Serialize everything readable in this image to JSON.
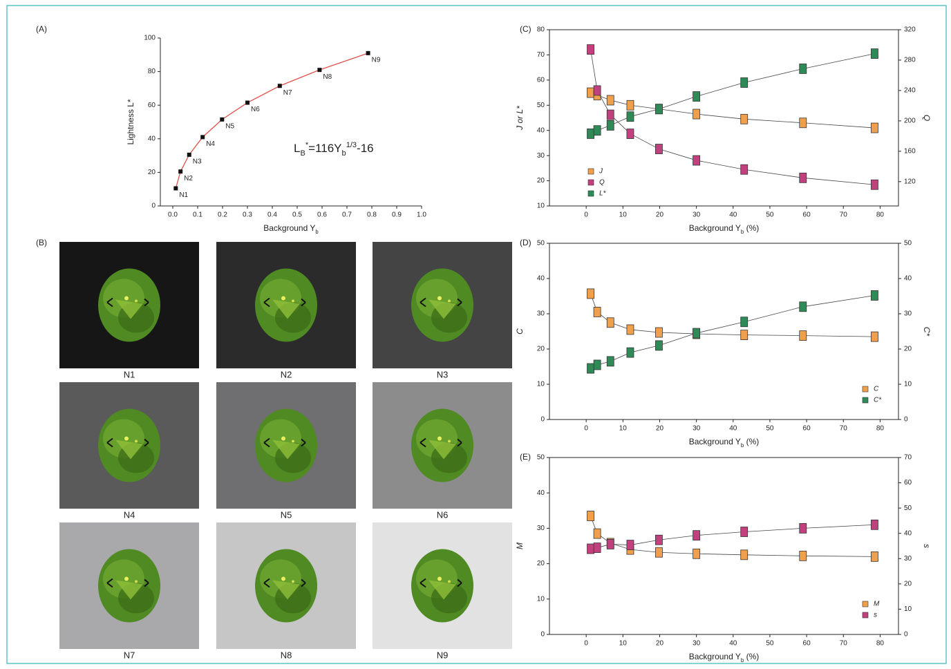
{
  "chart_data": [
    {
      "type": "line",
      "panel_label": "(A)",
      "xlabel": [
        "Background Y",
        "b"
      ],
      "ylabel": "Lightness L*",
      "xlim": [
        -0.05,
        1.0
      ],
      "xticks": [
        {
          "value": 0,
          "label": "0.0"
        },
        {
          "value": 0.1,
          "label": "0.1"
        },
        {
          "value": 0.2,
          "label": "0.2"
        },
        {
          "value": 0.3,
          "label": "0.3"
        },
        {
          "value": 0.4,
          "label": "0.4"
        },
        {
          "value": 0.5,
          "label": "0.5"
        },
        {
          "value": 0.6,
          "label": "0.6"
        },
        {
          "value": 0.7,
          "label": "0.7"
        },
        {
          "value": 0.8,
          "label": "0.8"
        },
        {
          "value": 0.9,
          "label": "0.9"
        },
        {
          "value": 1,
          "label": "1.0"
        }
      ],
      "ylim": [
        0,
        100
      ],
      "yticks": [
        0,
        20,
        40,
        60,
        80,
        100
      ],
      "x": [
        0.012,
        0.031,
        0.066,
        0.12,
        0.198,
        0.3,
        0.43,
        0.59,
        0.785
      ],
      "series": [
        {
          "color": "#e0504a",
          "marker_color": "#111111",
          "values": [
            10.5,
            20.5,
            30.5,
            41,
            51.5,
            61.5,
            71.5,
            81,
            91
          ]
        }
      ],
      "point_labels": [
        "N1",
        "N2",
        "N3",
        "N4",
        "N5",
        "N6",
        "N7",
        "N8",
        "N9"
      ],
      "annotation": [
        "L",
        "B",
        "*",
        "=116Y",
        "b",
        "1/3",
        "-16"
      ]
    },
    {
      "type": "line",
      "panel_label": "(C)",
      "xlabel": [
        "Background Y",
        "b",
        " (%)"
      ],
      "ylabel": "J or L*",
      "y2label": "Q",
      "xlim": [
        -10,
        85
      ],
      "xticks": [
        0,
        10,
        20,
        30,
        40,
        50,
        60,
        70,
        80
      ],
      "ylim": [
        10,
        80
      ],
      "yticks": [
        10,
        20,
        30,
        40,
        50,
        60,
        70,
        80
      ],
      "y2lim": [
        88,
        320
      ],
      "y2ticks": [
        120,
        160,
        200,
        240,
        280,
        320
      ],
      "x": [
        1.2,
        3,
        6.6,
        12,
        19.8,
        30,
        43,
        59,
        78.5
      ],
      "series": [
        {
          "name": "J",
          "color": "#f0a04a",
          "values": [
            55,
            54,
            52,
            50,
            48.5,
            46.5,
            44.5,
            43,
            41
          ]
        },
        {
          "name": "Q",
          "color": "#c2407e",
          "axis": "y2",
          "values": [
            294,
            240,
            208,
            183,
            163,
            148,
            136,
            125,
            116
          ]
        },
        {
          "name": "L*",
          "color": "#2e8b57",
          "values": [
            38.7,
            40,
            42,
            45.5,
            48.5,
            53.5,
            59,
            64.5,
            70.5
          ]
        }
      ],
      "legend": "upper left"
    },
    {
      "type": "line",
      "panel_label": "(D)",
      "xlabel": [
        "Background Y",
        "b",
        " (%)"
      ],
      "ylabel": "C",
      "y2label": "C*",
      "xlim": [
        -10,
        85
      ],
      "xticks": [
        0,
        10,
        20,
        30,
        40,
        50,
        60,
        70,
        80
      ],
      "ylim": [
        0,
        50
      ],
      "yticks": [
        0,
        10,
        20,
        30,
        40,
        50
      ],
      "y2lim": [
        0,
        50
      ],
      "y2ticks": [
        0,
        10,
        20,
        30,
        40,
        50
      ],
      "x": [
        1.2,
        3,
        6.6,
        12,
        19.8,
        30,
        43,
        59,
        78.5
      ],
      "series": [
        {
          "name": "C",
          "color": "#f0a04a",
          "values": [
            35.7,
            30.5,
            27.5,
            25.5,
            24.7,
            24.3,
            24,
            23.8,
            23.5
          ]
        },
        {
          "name": "C*",
          "color": "#2e8b57",
          "values": [
            14.5,
            15.5,
            16.5,
            19,
            21,
            24.5,
            27.7,
            32,
            35.2
          ]
        }
      ],
      "legend": "lower right"
    },
    {
      "type": "line",
      "panel_label": "(E)",
      "xlabel": [
        "Background Y",
        "b",
        " (%)"
      ],
      "ylabel": "M",
      "y2label": "s",
      "xlim": [
        -10,
        85
      ],
      "xticks": [
        0,
        10,
        20,
        30,
        40,
        50,
        60,
        70,
        80
      ],
      "ylim": [
        0,
        50
      ],
      "yticks": [
        0,
        10,
        20,
        30,
        40,
        50
      ],
      "y2lim": [
        0,
        70
      ],
      "y2ticks": [
        0,
        10,
        20,
        30,
        40,
        50,
        60,
        70
      ],
      "x": [
        1.2,
        3,
        6.6,
        12,
        19.8,
        30,
        43,
        59,
        78.5
      ],
      "series": [
        {
          "name": "M",
          "color": "#f0a04a",
          "values": [
            33.5,
            28.5,
            25.8,
            24,
            23.2,
            22.8,
            22.5,
            22.2,
            22
          ]
        },
        {
          "name": "s",
          "color": "#c2407e",
          "axis": "y2",
          "values": [
            33.9,
            34.3,
            35.7,
            35.4,
            37.4,
            39.2,
            40.6,
            42,
            43.4
          ]
        }
      ],
      "legend": "lower right"
    }
  ],
  "panel_b": {
    "label": "(B)",
    "tiles": [
      {
        "label": "N1",
        "background": "#161616"
      },
      {
        "label": "N2",
        "background": "#2b2b2b"
      },
      {
        "label": "N3",
        "background": "#444444"
      },
      {
        "label": "N4",
        "background": "#5a5a5a"
      },
      {
        "label": "N5",
        "background": "#6f6e70"
      },
      {
        "label": "N6",
        "background": "#8c8c8c"
      },
      {
        "label": "N7",
        "background": "#a9a8aa"
      },
      {
        "label": "N8",
        "background": "#c6c6c6"
      },
      {
        "label": "N9",
        "background": "#e2e2e2"
      }
    ]
  }
}
